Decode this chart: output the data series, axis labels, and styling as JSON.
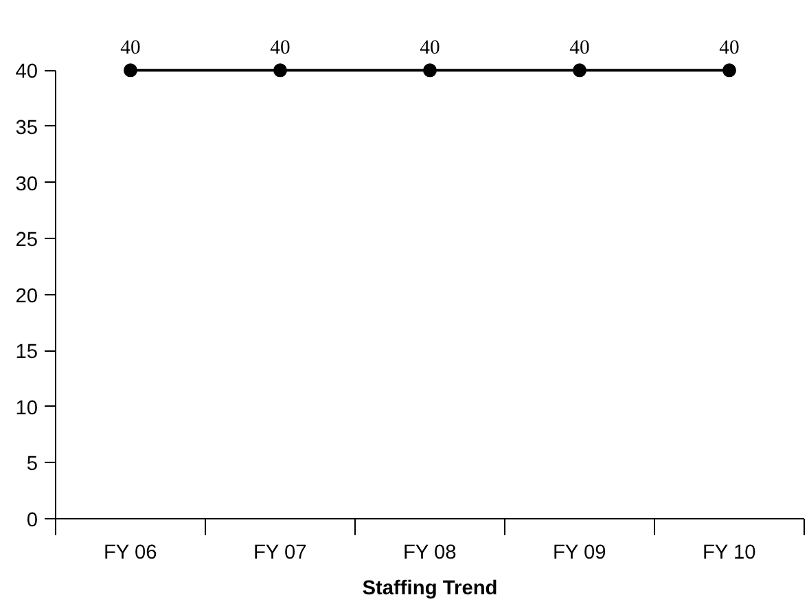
{
  "chart_data": {
    "type": "line",
    "title": "Staffing Trend",
    "categories": [
      "FY 06",
      "FY 07",
      "FY 08",
      "FY 09",
      "FY 10"
    ],
    "series": [
      {
        "color": "#000000",
        "values": [
          40,
          40,
          40,
          40,
          40
        ]
      }
    ],
    "ylim": [
      0,
      40
    ],
    "yticks": [
      0,
      5,
      10,
      15,
      20,
      25,
      30,
      35,
      40
    ],
    "grid": false,
    "marker": "circle",
    "line_style": "solid",
    "data_labels": true
  }
}
